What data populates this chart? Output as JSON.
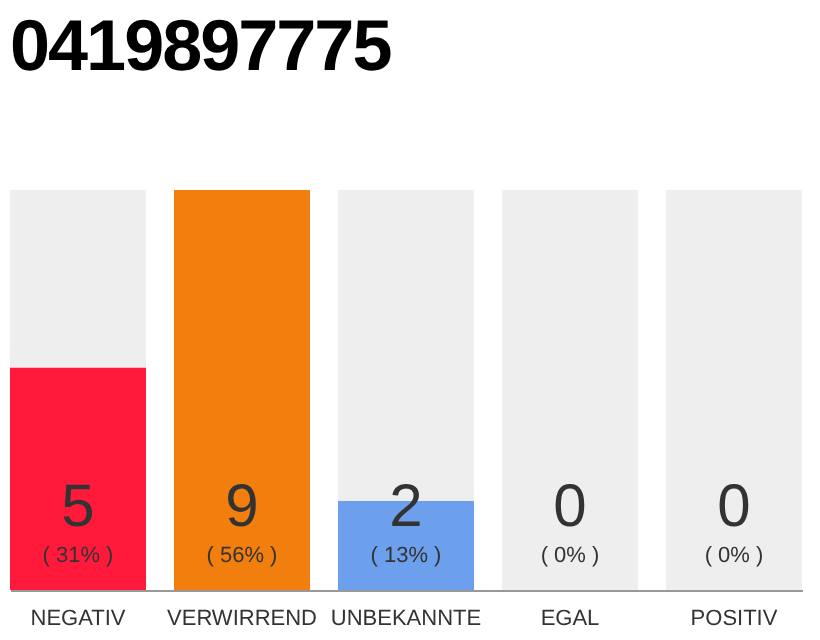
{
  "chart_data": {
    "type": "bar",
    "title": "0419897775",
    "categories": [
      "NEGATIV",
      "VERWIRREND",
      "UNBEKANNTE",
      "EGAL",
      "POSITIV"
    ],
    "values": [
      5,
      9,
      2,
      0,
      0
    ],
    "colors": [
      "#ff1a3c",
      "#f27e0e",
      "#6ca0ec",
      "#6ca0ec",
      "#6ca0ec"
    ],
    "data_labels": true,
    "annotations": [
      "( 31% )",
      "( 56% )",
      "( 13% )",
      "( 0% )",
      "( 0% )"
    ]
  }
}
